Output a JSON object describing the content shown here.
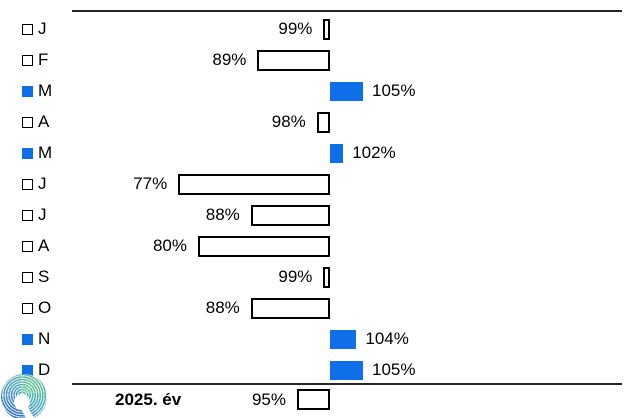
{
  "chart_data": {
    "type": "bar",
    "orientation": "horizontal",
    "baseline_value": 100,
    "unit": "%",
    "categories": [
      "J",
      "F",
      "M",
      "A",
      "M",
      "J",
      "J",
      "A",
      "S",
      "O",
      "N",
      "D"
    ],
    "values": [
      99,
      89,
      105,
      98,
      102,
      77,
      88,
      80,
      99,
      88,
      104,
      105
    ],
    "value_labels": [
      "99%",
      "89%",
      "105%",
      "98%",
      "102%",
      "77%",
      "88%",
      "80%",
      "99%",
      "88%",
      "104%",
      "105%"
    ],
    "summary_row": {
      "label": "2025. év",
      "value": 95,
      "value_label": "95%"
    },
    "legend": {
      "above_baseline_marker": "blue-filled-square",
      "below_baseline_marker": "white-outlined-square"
    },
    "colors": {
      "accent_blue": "#0E6FE8",
      "bar_outline": "#000000",
      "bar_fill_below": "#FFFFFF",
      "axis_line": "#262626",
      "logo_palette": [
        "#63BD92",
        "#52AAB4",
        "#3F86C6",
        "#2E6FC0"
      ]
    },
    "grid": false,
    "title": "",
    "xlabel": "",
    "ylabel": ""
  }
}
